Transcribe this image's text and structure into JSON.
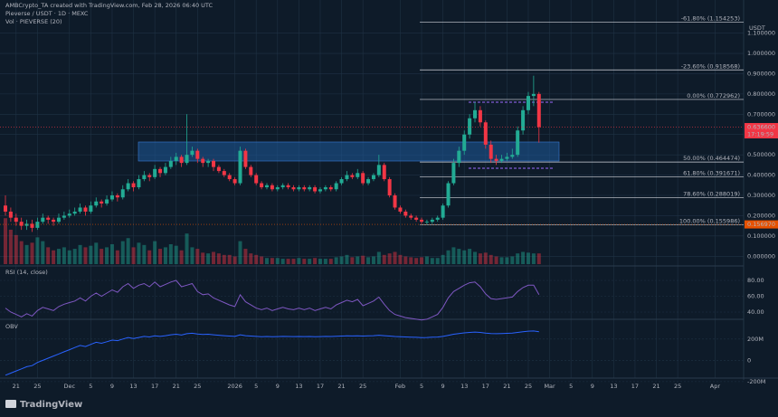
{
  "header": {
    "credit": "AMBCrypto_TA created with TradingView.com, Feb 28, 2026 06:40 UTC",
    "symbol": "Pieverse / USDT · 1D · MEXC",
    "volume_title": "Vol · PIEVERSE (20)",
    "currency": "USDT"
  },
  "chart_data": {
    "type": "candlestick",
    "categories": [
      null,
      null,
      "21",
      null,
      null,
      null,
      "25",
      null,
      null,
      null,
      null,
      null,
      "Dec",
      null,
      null,
      null,
      "5",
      null,
      null,
      null,
      "9",
      null,
      null,
      null,
      "13",
      null,
      null,
      null,
      "17",
      null,
      null,
      null,
      "21",
      null,
      null,
      null,
      "25",
      null,
      null,
      null,
      null,
      null,
      null,
      "2026",
      null,
      null,
      null,
      "5",
      null,
      null,
      null,
      "9",
      null,
      null,
      null,
      "13",
      null,
      null,
      null,
      "17",
      null,
      null,
      null,
      "21",
      null,
      null,
      null,
      "25",
      null,
      null,
      null,
      null,
      null,
      null,
      "Feb",
      null,
      null,
      null,
      "5",
      null,
      null,
      null,
      "9",
      null,
      null,
      null,
      "13",
      null,
      null,
      null,
      "17",
      null,
      null,
      null,
      "21",
      null,
      null,
      null,
      "25",
      null,
      null,
      null,
      "Mar",
      null,
      null,
      null,
      "5",
      null,
      null,
      null,
      "9",
      null,
      null,
      null,
      "13",
      null,
      null,
      null,
      "17",
      null,
      null,
      null,
      "21",
      null,
      null,
      null,
      "25",
      null,
      null,
      null,
      null,
      null,
      null,
      "Apr",
      null,
      null,
      null,
      null
    ],
    "candles": [
      [
        0.25,
        0.3,
        0.2,
        0.22
      ],
      [
        0.22,
        0.24,
        0.17,
        0.19
      ],
      [
        0.19,
        0.21,
        0.15,
        0.17
      ],
      [
        0.17,
        0.19,
        0.13,
        0.15
      ],
      [
        0.15,
        0.18,
        0.13,
        0.16
      ],
      [
        0.16,
        0.18,
        0.12,
        0.14
      ],
      [
        0.14,
        0.19,
        0.13,
        0.17
      ],
      [
        0.17,
        0.21,
        0.16,
        0.19
      ],
      [
        0.19,
        0.2,
        0.16,
        0.18
      ],
      [
        0.18,
        0.19,
        0.15,
        0.17
      ],
      [
        0.17,
        0.21,
        0.16,
        0.19
      ],
      [
        0.19,
        0.22,
        0.18,
        0.2
      ],
      [
        0.2,
        0.23,
        0.19,
        0.21
      ],
      [
        0.21,
        0.24,
        0.2,
        0.22
      ],
      [
        0.22,
        0.26,
        0.21,
        0.24
      ],
      [
        0.24,
        0.25,
        0.2,
        0.22
      ],
      [
        0.22,
        0.27,
        0.21,
        0.25
      ],
      [
        0.25,
        0.29,
        0.24,
        0.27
      ],
      [
        0.27,
        0.28,
        0.24,
        0.26
      ],
      [
        0.26,
        0.3,
        0.25,
        0.28
      ],
      [
        0.28,
        0.32,
        0.27,
        0.3
      ],
      [
        0.3,
        0.31,
        0.27,
        0.29
      ],
      [
        0.29,
        0.35,
        0.28,
        0.33
      ],
      [
        0.33,
        0.38,
        0.32,
        0.36
      ],
      [
        0.36,
        0.37,
        0.32,
        0.34
      ],
      [
        0.34,
        0.4,
        0.33,
        0.38
      ],
      [
        0.38,
        0.42,
        0.37,
        0.4
      ],
      [
        0.4,
        0.41,
        0.37,
        0.39
      ],
      [
        0.39,
        0.45,
        0.38,
        0.43
      ],
      [
        0.43,
        0.44,
        0.39,
        0.41
      ],
      [
        0.41,
        0.46,
        0.4,
        0.44
      ],
      [
        0.44,
        0.49,
        0.43,
        0.47
      ],
      [
        0.47,
        0.51,
        0.45,
        0.49
      ],
      [
        0.49,
        0.5,
        0.44,
        0.46
      ],
      [
        0.46,
        0.7,
        0.45,
        0.5
      ],
      [
        0.5,
        0.54,
        0.49,
        0.52
      ],
      [
        0.52,
        0.53,
        0.46,
        0.48
      ],
      [
        0.48,
        0.49,
        0.44,
        0.46
      ],
      [
        0.46,
        0.48,
        0.44,
        0.47
      ],
      [
        0.47,
        0.48,
        0.42,
        0.44
      ],
      [
        0.44,
        0.45,
        0.41,
        0.42
      ],
      [
        0.42,
        0.43,
        0.39,
        0.4
      ],
      [
        0.4,
        0.41,
        0.37,
        0.38
      ],
      [
        0.38,
        0.39,
        0.35,
        0.36
      ],
      [
        0.36,
        0.54,
        0.35,
        0.52
      ],
      [
        0.52,
        0.53,
        0.43,
        0.44
      ],
      [
        0.44,
        0.45,
        0.39,
        0.4
      ],
      [
        0.4,
        0.41,
        0.35,
        0.36
      ],
      [
        0.36,
        0.37,
        0.33,
        0.34
      ],
      [
        0.34,
        0.36,
        0.33,
        0.35
      ],
      [
        0.35,
        0.36,
        0.32,
        0.33
      ],
      [
        0.33,
        0.35,
        0.32,
        0.34
      ],
      [
        0.34,
        0.36,
        0.33,
        0.35
      ],
      [
        0.35,
        0.36,
        0.33,
        0.34
      ],
      [
        0.34,
        0.35,
        0.32,
        0.33
      ],
      [
        0.33,
        0.35,
        0.32,
        0.34
      ],
      [
        0.34,
        0.35,
        0.32,
        0.33
      ],
      [
        0.33,
        0.35,
        0.32,
        0.34
      ],
      [
        0.34,
        0.35,
        0.31,
        0.32
      ],
      [
        0.32,
        0.34,
        0.31,
        0.33
      ],
      [
        0.33,
        0.35,
        0.32,
        0.34
      ],
      [
        0.34,
        0.35,
        0.32,
        0.33
      ],
      [
        0.33,
        0.37,
        0.32,
        0.36
      ],
      [
        0.36,
        0.39,
        0.35,
        0.38
      ],
      [
        0.38,
        0.42,
        0.37,
        0.4
      ],
      [
        0.4,
        0.41,
        0.38,
        0.39
      ],
      [
        0.39,
        0.43,
        0.38,
        0.41
      ],
      [
        0.41,
        0.42,
        0.35,
        0.36
      ],
      [
        0.36,
        0.39,
        0.35,
        0.38
      ],
      [
        0.38,
        0.41,
        0.37,
        0.4
      ],
      [
        0.4,
        0.5,
        0.39,
        0.45
      ],
      [
        0.45,
        0.46,
        0.37,
        0.38
      ],
      [
        0.38,
        0.39,
        0.29,
        0.3
      ],
      [
        0.3,
        0.31,
        0.23,
        0.24
      ],
      [
        0.24,
        0.25,
        0.21,
        0.22
      ],
      [
        0.22,
        0.23,
        0.19,
        0.2
      ],
      [
        0.2,
        0.21,
        0.18,
        0.19
      ],
      [
        0.19,
        0.2,
        0.17,
        0.18
      ],
      [
        0.18,
        0.19,
        0.16,
        0.17
      ],
      [
        0.17,
        0.18,
        0.156,
        0.17
      ],
      [
        0.17,
        0.19,
        0.16,
        0.18
      ],
      [
        0.18,
        0.2,
        0.17,
        0.19
      ],
      [
        0.19,
        0.26,
        0.18,
        0.25
      ],
      [
        0.25,
        0.37,
        0.24,
        0.36
      ],
      [
        0.36,
        0.48,
        0.35,
        0.46
      ],
      [
        0.46,
        0.54,
        0.44,
        0.52
      ],
      [
        0.52,
        0.62,
        0.5,
        0.6
      ],
      [
        0.6,
        0.7,
        0.58,
        0.68
      ],
      [
        0.68,
        0.76,
        0.66,
        0.72
      ],
      [
        0.72,
        0.74,
        0.64,
        0.66
      ],
      [
        0.66,
        0.67,
        0.53,
        0.55
      ],
      [
        0.55,
        0.57,
        0.46,
        0.48
      ],
      [
        0.48,
        0.5,
        0.45,
        0.47
      ],
      [
        0.47,
        0.5,
        0.46,
        0.48
      ],
      [
        0.48,
        0.51,
        0.47,
        0.49
      ],
      [
        0.49,
        0.53,
        0.48,
        0.5
      ],
      [
        0.5,
        0.64,
        0.49,
        0.62
      ],
      [
        0.62,
        0.74,
        0.6,
        0.72
      ],
      [
        0.72,
        0.81,
        0.7,
        0.79
      ],
      [
        0.79,
        0.89,
        0.74,
        0.8
      ],
      [
        0.8,
        0.81,
        0.56,
        0.6366
      ],
      null,
      null,
      null,
      null,
      null,
      null,
      null,
      null,
      null,
      null,
      null,
      null,
      null,
      null,
      null,
      null,
      null,
      null,
      null,
      null,
      null,
      null,
      null,
      null,
      null,
      null,
      null,
      null,
      null,
      null,
      null,
      null,
      null,
      null,
      null,
      null,
      null
    ],
    "up_color": "#22ab94",
    "down_color": "#f23645",
    "ylim": [
      -0.03,
      1.174
    ],
    "yticks": [
      {
        "value": 1.1,
        "label": "1.100000"
      },
      {
        "value": 1.0,
        "label": "1.000000"
      },
      {
        "value": 0.9,
        "label": "0.900000"
      },
      {
        "value": 0.8,
        "label": "0.800000"
      },
      {
        "value": 0.7,
        "label": "0.700000"
      },
      {
        "value": 0.6,
        "label": "0.600000"
      },
      {
        "value": 0.5,
        "label": "0.500000"
      },
      {
        "value": 0.4,
        "label": "0.400000"
      },
      {
        "value": 0.3,
        "label": "0.300000"
      },
      {
        "value": 0.2,
        "label": "0.200000"
      },
      {
        "value": 0.1,
        "label": "0.100000"
      },
      {
        "value": 0,
        "label": "0.000000"
      }
    ],
    "grid": true,
    "fib_color": "#d1d4dc",
    "fib_levels": [
      {
        "value": 1.154253,
        "label": "-61.80% (1.154253)"
      },
      {
        "value": 0.918568,
        "label": "-23.60% (0.918568)"
      },
      {
        "value": 0.772962,
        "label": "0.00% (0.772962)"
      },
      {
        "value": 0.464474,
        "label": "50.00% (0.464474)"
      },
      {
        "value": 0.391671,
        "label": "61.80% (0.391671)"
      },
      {
        "value": 0.288019,
        "label": "78.60% (0.288019)"
      },
      {
        "value": 0.155986,
        "label": "100.00% (0.155986)"
      }
    ],
    "last_price": {
      "value": 0.6366,
      "label": "0.636600"
    },
    "countdown": "17:19:59",
    "low_badge": {
      "value": 0.15697,
      "label": "0.156970"
    },
    "volume": {
      "ylim": [
        0,
        65
      ],
      "values": [
        60,
        45,
        38,
        30,
        25,
        28,
        35,
        30,
        22,
        18,
        20,
        22,
        18,
        20,
        25,
        22,
        24,
        28,
        20,
        22,
        26,
        18,
        30,
        34,
        22,
        28,
        25,
        18,
        30,
        20,
        22,
        26,
        24,
        18,
        40,
        22,
        20,
        15,
        14,
        16,
        14,
        12,
        12,
        10,
        30,
        20,
        14,
        12,
        10,
        8,
        8,
        8,
        7,
        7,
        7,
        8,
        7,
        7,
        8,
        7,
        7,
        7,
        9,
        10,
        12,
        9,
        10,
        11,
        9,
        10,
        16,
        12,
        14,
        16,
        12,
        10,
        9,
        8,
        9,
        10,
        8,
        8,
        12,
        18,
        22,
        20,
        18,
        20,
        16,
        14,
        15,
        12,
        10,
        9,
        9,
        10,
        14,
        16,
        15,
        14,
        14,
        null,
        null,
        null,
        null,
        null,
        null,
        null,
        null,
        null,
        null,
        null,
        null,
        null,
        null,
        null,
        null,
        null,
        null,
        null,
        null,
        null,
        null,
        null,
        null,
        null,
        null,
        null,
        null,
        null,
        null,
        null,
        null,
        null,
        null,
        null,
        null,
        null
      ]
    },
    "rsi": {
      "title": "RSI (14, close)",
      "color": "#7e57c2",
      "ylim": [
        32,
        96
      ],
      "yticks": [
        {
          "value": 80,
          "label": "80.00"
        },
        {
          "value": 60,
          "label": "60.00"
        },
        {
          "value": 40,
          "label": "40.00"
        }
      ],
      "values": [
        45,
        40,
        37,
        34,
        38,
        35,
        42,
        46,
        44,
        42,
        47,
        50,
        52,
        54,
        58,
        54,
        60,
        64,
        60,
        64,
        68,
        65,
        72,
        76,
        70,
        74,
        76,
        72,
        78,
        72,
        75,
        78,
        80,
        72,
        74,
        76,
        66,
        62,
        63,
        58,
        55,
        52,
        49,
        47,
        62,
        53,
        49,
        45,
        43,
        45,
        42,
        44,
        46,
        44,
        43,
        45,
        43,
        45,
        42,
        44,
        46,
        44,
        49,
        52,
        55,
        53,
        56,
        48,
        51,
        54,
        59,
        50,
        42,
        37,
        35,
        33,
        32,
        31,
        30,
        31,
        34,
        37,
        46,
        58,
        66,
        70,
        74,
        77,
        78,
        72,
        63,
        57,
        56,
        57,
        58,
        59,
        66,
        71,
        74,
        74,
        62,
        null,
        null,
        null,
        null,
        null,
        null,
        null,
        null,
        null,
        null,
        null,
        null,
        null,
        null,
        null,
        null,
        null,
        null,
        null,
        null,
        null,
        null,
        null,
        null,
        null,
        null,
        null,
        null,
        null,
        null,
        null,
        null,
        null,
        null,
        null,
        null,
        null
      ]
    },
    "obv": {
      "title": "OBV",
      "color": "#2962ff",
      "ylim": [
        -150,
        360
      ],
      "yticks": [
        {
          "value": 200,
          "label": "200M"
        },
        0,
        {
          "value": -200,
          "label": "-200M"
        }
      ],
      "values": [
        -140,
        -120,
        -100,
        -80,
        -60,
        -50,
        -20,
        0,
        20,
        40,
        60,
        80,
        100,
        120,
        140,
        130,
        150,
        170,
        160,
        175,
        190,
        185,
        200,
        215,
        205,
        215,
        225,
        220,
        230,
        225,
        232,
        240,
        245,
        238,
        250,
        255,
        248,
        243,
        245,
        240,
        236,
        232,
        228,
        225,
        240,
        232,
        228,
        225,
        222,
        224,
        222,
        223,
        225,
        224,
        223,
        224,
        223,
        224,
        222,
        223,
        225,
        224,
        226,
        228,
        230,
        229,
        231,
        228,
        230,
        232,
        236,
        232,
        228,
        224,
        222,
        220,
        218,
        216,
        214,
        215,
        217,
        219,
        225,
        235,
        245,
        252,
        258,
        262,
        266,
        262,
        256,
        252,
        250,
        252,
        254,
        256,
        262,
        268,
        274,
        276,
        268,
        null,
        null,
        null,
        null,
        null,
        null,
        null,
        null,
        null,
        null,
        null,
        null,
        null,
        null,
        null,
        null,
        null,
        null,
        null,
        null,
        null,
        null,
        null,
        null,
        null,
        null,
        null,
        null,
        null,
        null,
        null,
        null,
        null,
        null,
        null,
        null,
        null
      ]
    }
  },
  "footer": {
    "brand": "TradingView"
  }
}
